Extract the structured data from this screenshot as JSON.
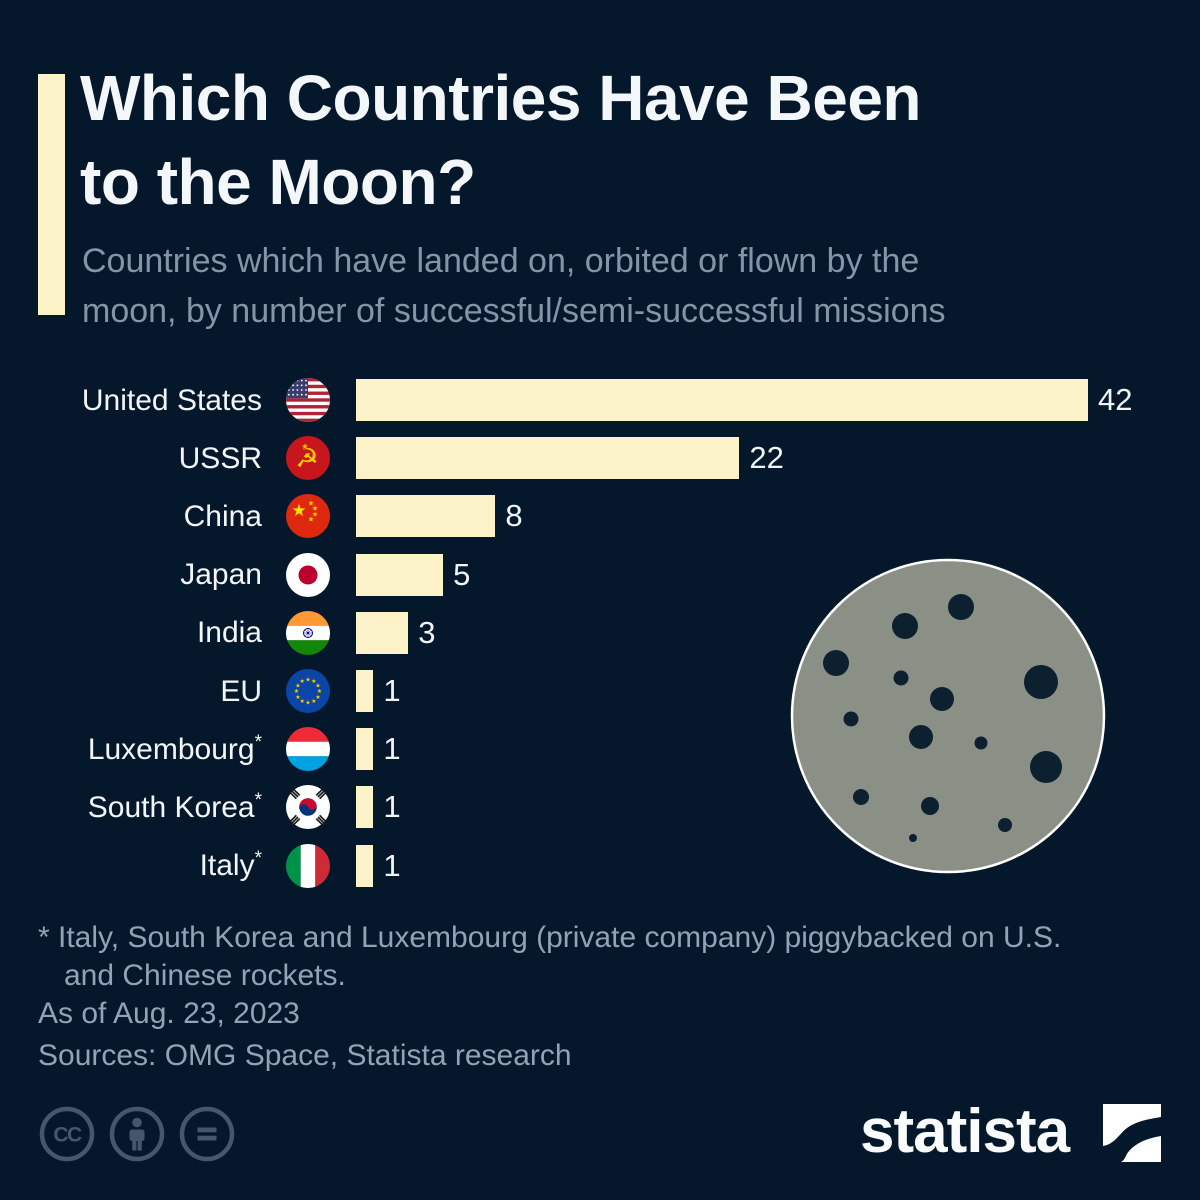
{
  "page": {
    "background_color": "#05182B",
    "accent_color": "#FBF2C7"
  },
  "header": {
    "title_lines": [
      "Which Countries Have Been",
      "to the Moon?"
    ],
    "subtitle_lines": [
      "Countries which have landed on, orbited or flown by the",
      "moon, by number of successful/semi-successful missions"
    ]
  },
  "chart_data": {
    "type": "bar",
    "orientation": "horizontal",
    "title": "Which Countries Have Been to the Moon?",
    "subtitle": "Countries which have landed on, orbited or flown by the moon, by number of successful/semi-successful missions",
    "categories": [
      "United States",
      "USSR",
      "China",
      "Japan",
      "India",
      "EU",
      "Luxembourg*",
      "South Korea*",
      "Italy*"
    ],
    "values": [
      42,
      22,
      8,
      5,
      3,
      1,
      1,
      1,
      1
    ],
    "xlim": [
      0,
      42
    ],
    "bar_color": "#FBF2C7",
    "grid": false,
    "value_labels": "end-of-bar",
    "rows": [
      {
        "label": "United States",
        "note": "",
        "flag": "united-states-flag"
      },
      {
        "label": "USSR",
        "note": "",
        "flag": "ussr-flag"
      },
      {
        "label": "China",
        "note": "",
        "flag": "china-flag"
      },
      {
        "label": "Japan",
        "note": "",
        "flag": "japan-flag"
      },
      {
        "label": "India",
        "note": "",
        "flag": "india-flag"
      },
      {
        "label": "EU",
        "note": "",
        "flag": "eu-flag"
      },
      {
        "label": "Luxembourg",
        "note": "*",
        "flag": "luxembourg-flag"
      },
      {
        "label": "South Korea",
        "note": "*",
        "flag": "south-korea-flag"
      },
      {
        "label": "Italy",
        "note": "*",
        "flag": "italy-flag"
      }
    ]
  },
  "decorations": {
    "moon_icon": "moon-with-craters",
    "moon_fill": "#8A9086",
    "crater_color": "#0D2030"
  },
  "footer": {
    "footnote_lines": [
      "* Italy, South Korea and Luxembourg (private company) piggybacked on U.S.",
      "and Chinese rockets."
    ],
    "as_of": "As of Aug. 23, 2023",
    "sources": "Sources: OMG Space, Statista research"
  },
  "branding": {
    "logo_text": "statista",
    "license_icons": [
      "cc",
      "by",
      "nd"
    ]
  }
}
